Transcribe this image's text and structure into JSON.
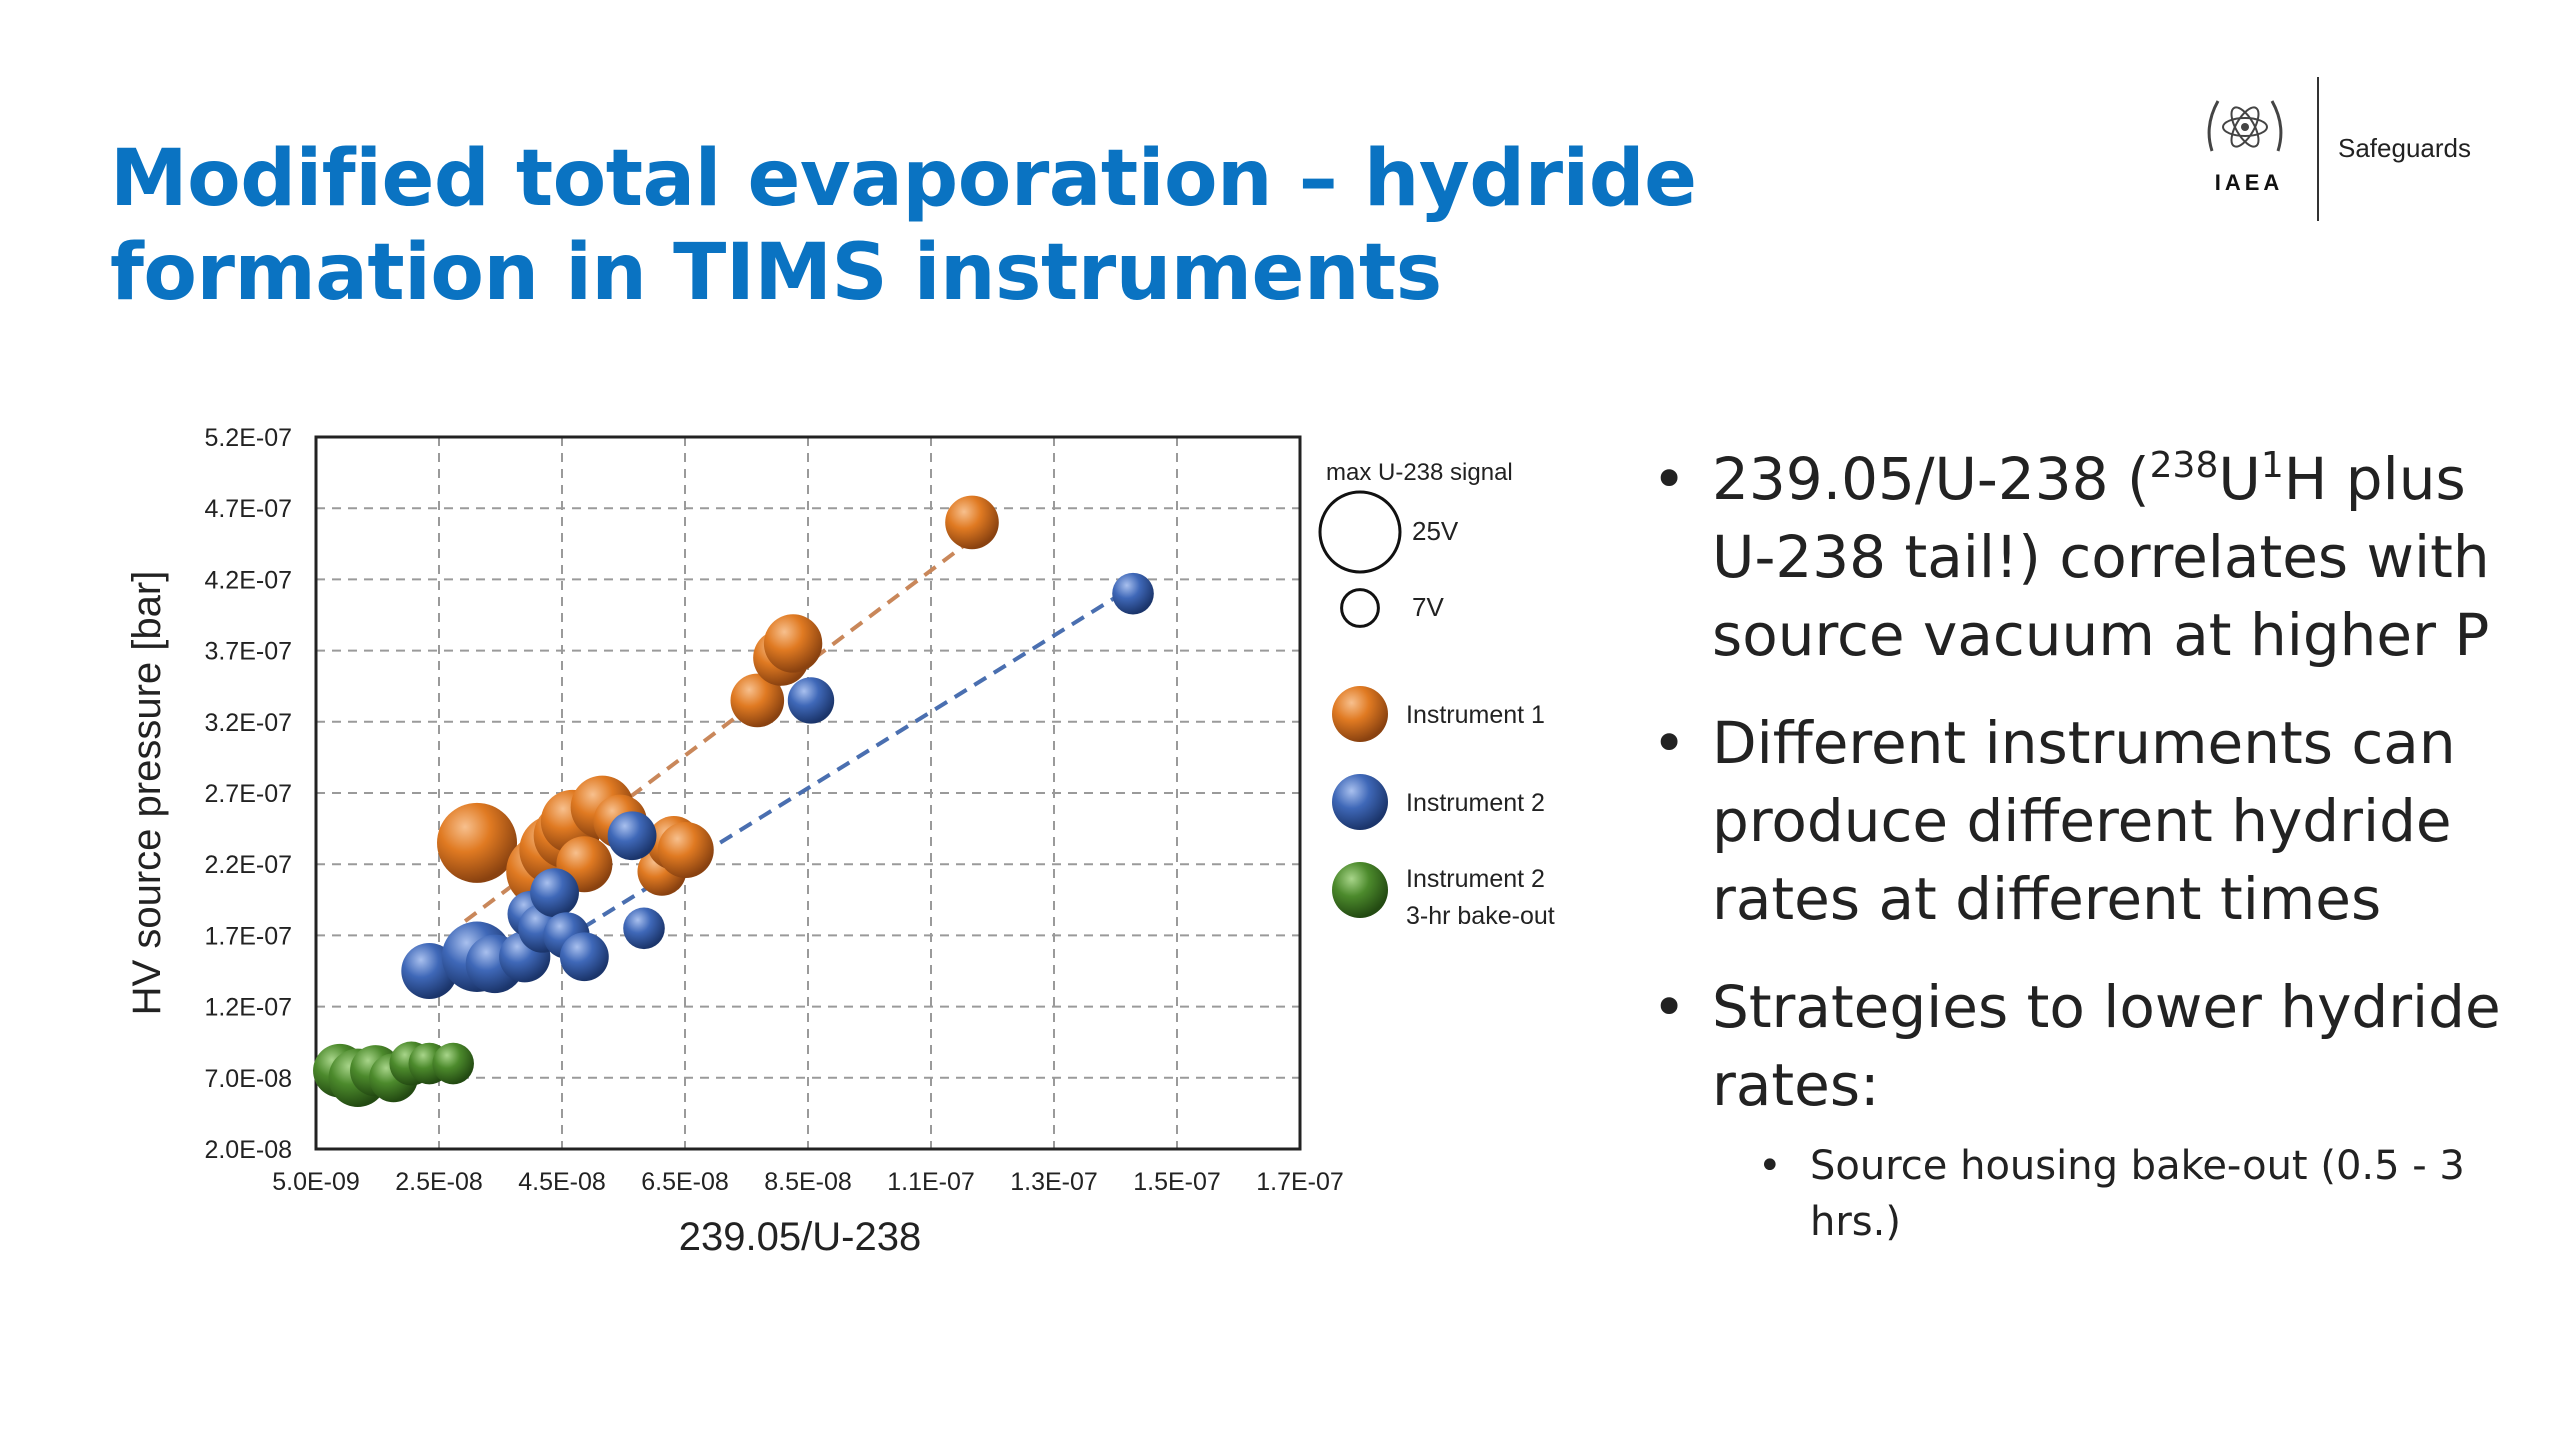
{
  "slide": {
    "title": "Modified total evaporation – hydride formation in TIMS instruments",
    "logo_text": "IAEA",
    "logo_sub": "Safeguards"
  },
  "bullets": [
    {
      "pre": "239.05/U-238 (",
      "sup1": "238",
      "mid": "U",
      "sup2": "1",
      "post": "H plus U-238 tail!) correlates with source vacuum at higher P"
    },
    {
      "text": "Different instruments can produce different hydride rates at different times"
    },
    {
      "text": "Strategies to lower hydride rates:"
    }
  ],
  "sub_bullets": [
    {
      "text": "Source housing bake-out (0.5 - 3 hrs.)"
    }
  ],
  "bullet_symbol": "•",
  "colors": {
    "title": "#0a73c2",
    "instrument1": "#e07a22",
    "instrument2": "#3f68b8",
    "instrument2_bake": "#4c8a2c",
    "trend1": "#c9875a",
    "trend2": "#4a6fb0"
  },
  "chart_data": {
    "type": "scatter",
    "xlabel": "239.05/U-238",
    "ylabel": "HV source pressure [bar]",
    "xlim": [
      5e-09,
      1.7e-07
    ],
    "ylim": [
      2e-08,
      5.2e-07
    ],
    "xticks": [
      "5.0E-09",
      "2.5E-08",
      "4.5E-08",
      "6.5E-08",
      "8.5E-08",
      "1.1E-07",
      "1.3E-07",
      "1.5E-07",
      "1.7E-07"
    ],
    "yticks": [
      "5.2E-07",
      "4.7E-07",
      "4.2E-07",
      "3.7E-07",
      "3.2E-07",
      "2.7E-07",
      "2.2E-07",
      "1.7E-07",
      "1.2E-07",
      "7.0E-08",
      "2.0E-08"
    ],
    "grid": true,
    "size_legend": {
      "title": "max U-238 signal",
      "entries": [
        {
          "label": "25V",
          "signal": 25
        },
        {
          "label": "7V",
          "signal": 7
        }
      ]
    },
    "series": [
      {
        "name": "Instrument 1",
        "points": [
          {
            "x": 3.2e-08,
            "y": 2.35e-07,
            "s": 25
          },
          {
            "x": 4.3e-08,
            "y": 2.15e-07,
            "s": 22
          },
          {
            "x": 4.5e-08,
            "y": 2.3e-07,
            "s": 21
          },
          {
            "x": 4.7e-08,
            "y": 2.4e-07,
            "s": 19
          },
          {
            "x": 4.8e-08,
            "y": 2.5e-07,
            "s": 18
          },
          {
            "x": 5e-08,
            "y": 2.2e-07,
            "s": 15
          },
          {
            "x": 5.3e-08,
            "y": 2.6e-07,
            "s": 18
          },
          {
            "x": 5.6e-08,
            "y": 2.5e-07,
            "s": 14
          },
          {
            "x": 6.3e-08,
            "y": 2.15e-07,
            "s": 12
          },
          {
            "x": 6.5e-08,
            "y": 2.35e-07,
            "s": 14
          },
          {
            "x": 6.7e-08,
            "y": 2.3e-07,
            "s": 15
          },
          {
            "x": 7.9e-08,
            "y": 3.35e-07,
            "s": 14
          },
          {
            "x": 8.3e-08,
            "y": 3.65e-07,
            "s": 15
          },
          {
            "x": 8.5e-08,
            "y": 3.75e-07,
            "s": 16
          },
          {
            "x": 1.15e-07,
            "y": 4.6e-07,
            "s": 14
          }
        ]
      },
      {
        "name": "Instrument 2",
        "points": [
          {
            "x": 2.4e-08,
            "y": 1.45e-07,
            "s": 15
          },
          {
            "x": 3.2e-08,
            "y": 1.55e-07,
            "s": 21
          },
          {
            "x": 3.5e-08,
            "y": 1.5e-07,
            "s": 16
          },
          {
            "x": 4e-08,
            "y": 1.55e-07,
            "s": 13
          },
          {
            "x": 4.1e-08,
            "y": 1.85e-07,
            "s": 11
          },
          {
            "x": 4.3e-08,
            "y": 1.75e-07,
            "s": 12
          },
          {
            "x": 4.5e-08,
            "y": 2e-07,
            "s": 12
          },
          {
            "x": 4.7e-08,
            "y": 1.7e-07,
            "s": 11
          },
          {
            "x": 5e-08,
            "y": 1.55e-07,
            "s": 12
          },
          {
            "x": 5.8e-08,
            "y": 2.4e-07,
            "s": 12
          },
          {
            "x": 6e-08,
            "y": 1.75e-07,
            "s": 9
          },
          {
            "x": 8.8e-08,
            "y": 3.35e-07,
            "s": 11
          },
          {
            "x": 1.42e-07,
            "y": 4.1e-07,
            "s": 9
          }
        ]
      },
      {
        "name": "Instrument 2 3-hr bake-out",
        "points": [
          {
            "x": 9e-09,
            "y": 7.5e-08,
            "s": 14
          },
          {
            "x": 1.2e-08,
            "y": 7e-08,
            "s": 16
          },
          {
            "x": 1.5e-08,
            "y": 7.5e-08,
            "s": 13
          },
          {
            "x": 1.8e-08,
            "y": 7e-08,
            "s": 12
          },
          {
            "x": 2.1e-08,
            "y": 8e-08,
            "s": 10
          },
          {
            "x": 2.4e-08,
            "y": 8e-08,
            "s": 9
          },
          {
            "x": 2.8e-08,
            "y": 8e-08,
            "s": 9
          }
        ]
      }
    ],
    "trendlines": [
      {
        "series": "Instrument 1",
        "x": [
          3e-08,
          1.15e-07
        ],
        "y": [
          1.8e-07,
          4.48e-07
        ]
      },
      {
        "series": "Instrument 2",
        "x": [
          4e-08,
          1.42e-07
        ],
        "y": [
          1.5e-07,
          4.15e-07
        ]
      }
    ],
    "legend": [
      {
        "label": "Instrument 1",
        "color": "#e07a22"
      },
      {
        "label": "Instrument 2",
        "color": "#3f68b8"
      },
      {
        "label": "Instrument 2",
        "label2": "3-hr bake-out",
        "color": "#4c8a2c"
      }
    ]
  }
}
